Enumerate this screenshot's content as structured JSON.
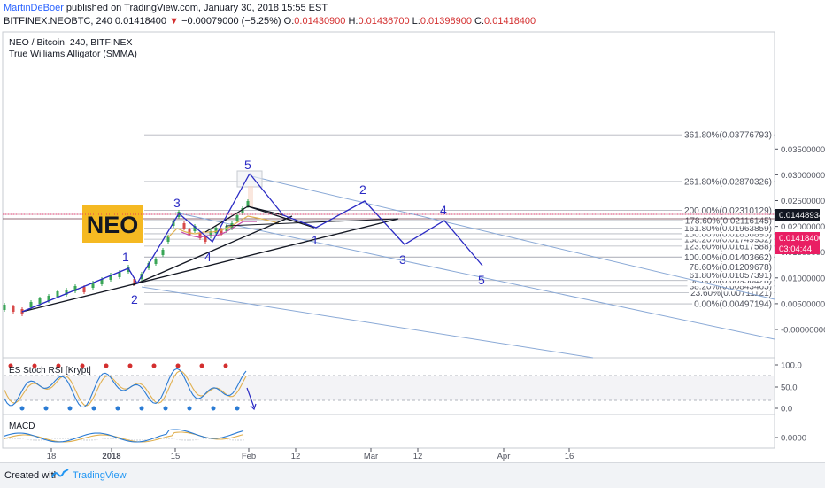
{
  "header": {
    "author": "MartinDeBoer",
    "published": " published on TradingView.com, January 30, 2018 15:55 EST",
    "symbol_line": "BITFINEX:NEOBTC, 240  0.01418400",
    "change": "−0.00079000 (−5.25%)",
    "o_label": "O:",
    "o_val": "0.01430900",
    "h_label": "H:",
    "h_val": "0.01436700",
    "l_label": "L:",
    "l_val": "0.01398900",
    "c_label": "C:",
    "c_val": "0.01418400"
  },
  "legend": {
    "title": "NEO / Bitcoin, 240, BITFINEX",
    "indicator": "True Williams Alligator (SMMA)",
    "neo_label": "NEO"
  },
  "price_labels": {
    "last": "0.01448934",
    "current": "0.01418400",
    "countdown": "03:04:44"
  },
  "osc_labels": {
    "stoch": "ES Stoch RSI [Krypt]",
    "macd": "MACD"
  },
  "colors": {
    "accent": "#2962ff",
    "down": "#d32f2f",
    "wave": "#2b2bc4",
    "fib": "#b2b5be",
    "channel": "#8aa9d6",
    "neo_badge": "#f5b922",
    "price_badge": "#e91e63"
  },
  "chart_data": [
    {
      "type": "line",
      "title": "NEO / Bitcoin, 240, BITFINEX",
      "y_axis_ticks": [
        "0.03500000",
        "0.03000000",
        "0.02500000",
        "0.02000000",
        "0.01500000",
        "0.01000000",
        "0.00500000",
        "-0.00000000"
      ],
      "x_axis_ticks": [
        "18",
        "2018",
        "15",
        "Feb",
        "12",
        "Mar",
        "12",
        "Apr",
        "16"
      ],
      "fib_levels": [
        {
          "label": "0.00%(0.00497194)",
          "value": 0.00497194
        },
        {
          "label": "23.60%(0.00711121)",
          "value": 0.00711121
        },
        {
          "label": "38.20%(0.00843465)",
          "value": 0.00843465
        },
        {
          "label": "50.00%(0.00950428)",
          "value": 0.00950428
        },
        {
          "label": "61.80%(0.01057391)",
          "value": 0.01057391
        },
        {
          "label": "78.60%(0.01209678)",
          "value": 0.01209678
        },
        {
          "label": "100.00%(0.01403662)",
          "value": 0.01403662
        },
        {
          "label": "123.60%(0.01617588)",
          "value": 0.01617588
        },
        {
          "label": "138.20%(0.01749932)",
          "value": 0.01749932
        },
        {
          "label": "150.00%(0.01856895)",
          "value": 0.01856895
        },
        {
          "label": "161.80%(0.01963859)",
          "value": 0.01963859
        },
        {
          "label": "178.60%(0.02116145)",
          "value": 0.02116145
        },
        {
          "label": "200.00%(0.02310129)",
          "value": 0.02310129
        },
        {
          "label": "261.80%(0.02870326)",
          "value": 0.02870326
        },
        {
          "label": "361.80%(0.03776793)",
          "value": 0.03776793
        }
      ],
      "wave_labels": [
        "1",
        "2",
        "3",
        "4",
        "5",
        "1",
        "2",
        "3",
        "4",
        "5"
      ],
      "last_price": 0.014184
    },
    {
      "type": "line",
      "title": "ES Stoch RSI [Krypt]",
      "y_axis_ticks": [
        "100.0",
        "50.0",
        "0.0"
      ]
    },
    {
      "type": "line",
      "title": "MACD",
      "y_axis_ticks": [
        "0.0000"
      ]
    }
  ]
}
